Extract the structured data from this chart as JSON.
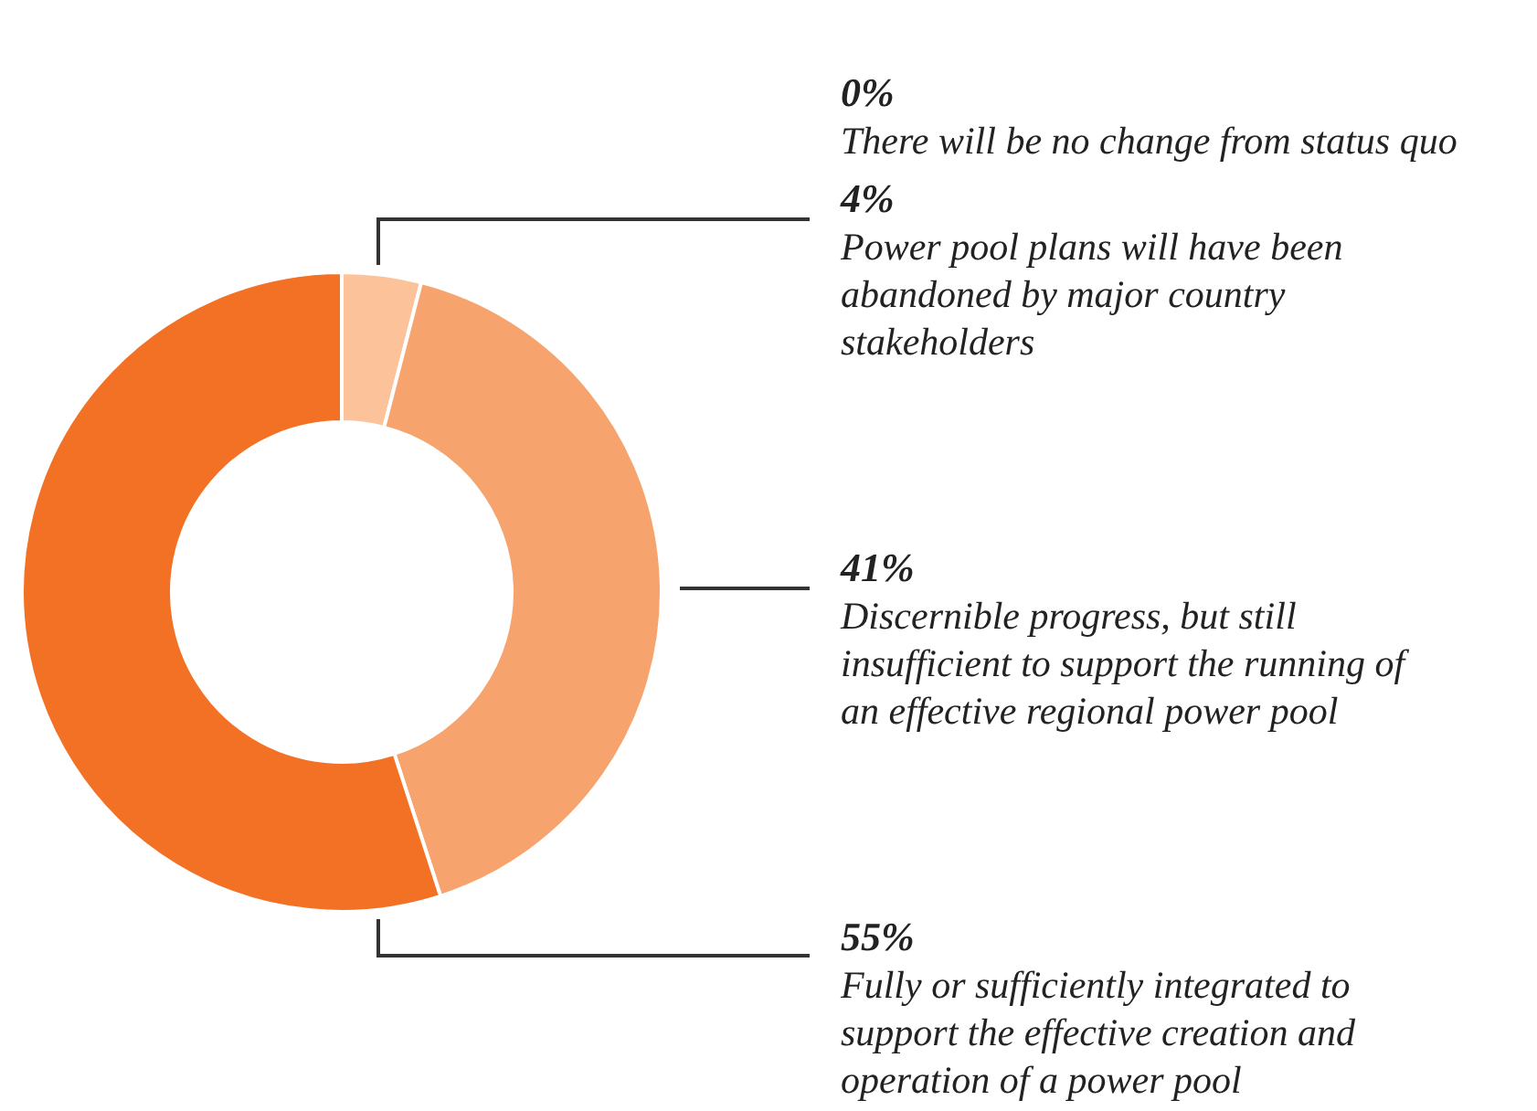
{
  "chart_data": {
    "type": "donut",
    "categories": [
      "There will be no change from status quo",
      "Power pool plans will have been abandoned by major country stakeholders",
      "Discernible progress, but still insufficient to support the running of an effective regional power pool",
      "Fully or sufficiently integrated to support the effective creation and operation of a power pool"
    ],
    "values": [
      0,
      4,
      41,
      55
    ],
    "value_labels": [
      "0%",
      "4%",
      "41%",
      "55%"
    ],
    "colors": [
      "#f9a66c",
      "#fcc29a",
      "#f7a36e",
      "#f37124"
    ],
    "legend": false
  }
}
